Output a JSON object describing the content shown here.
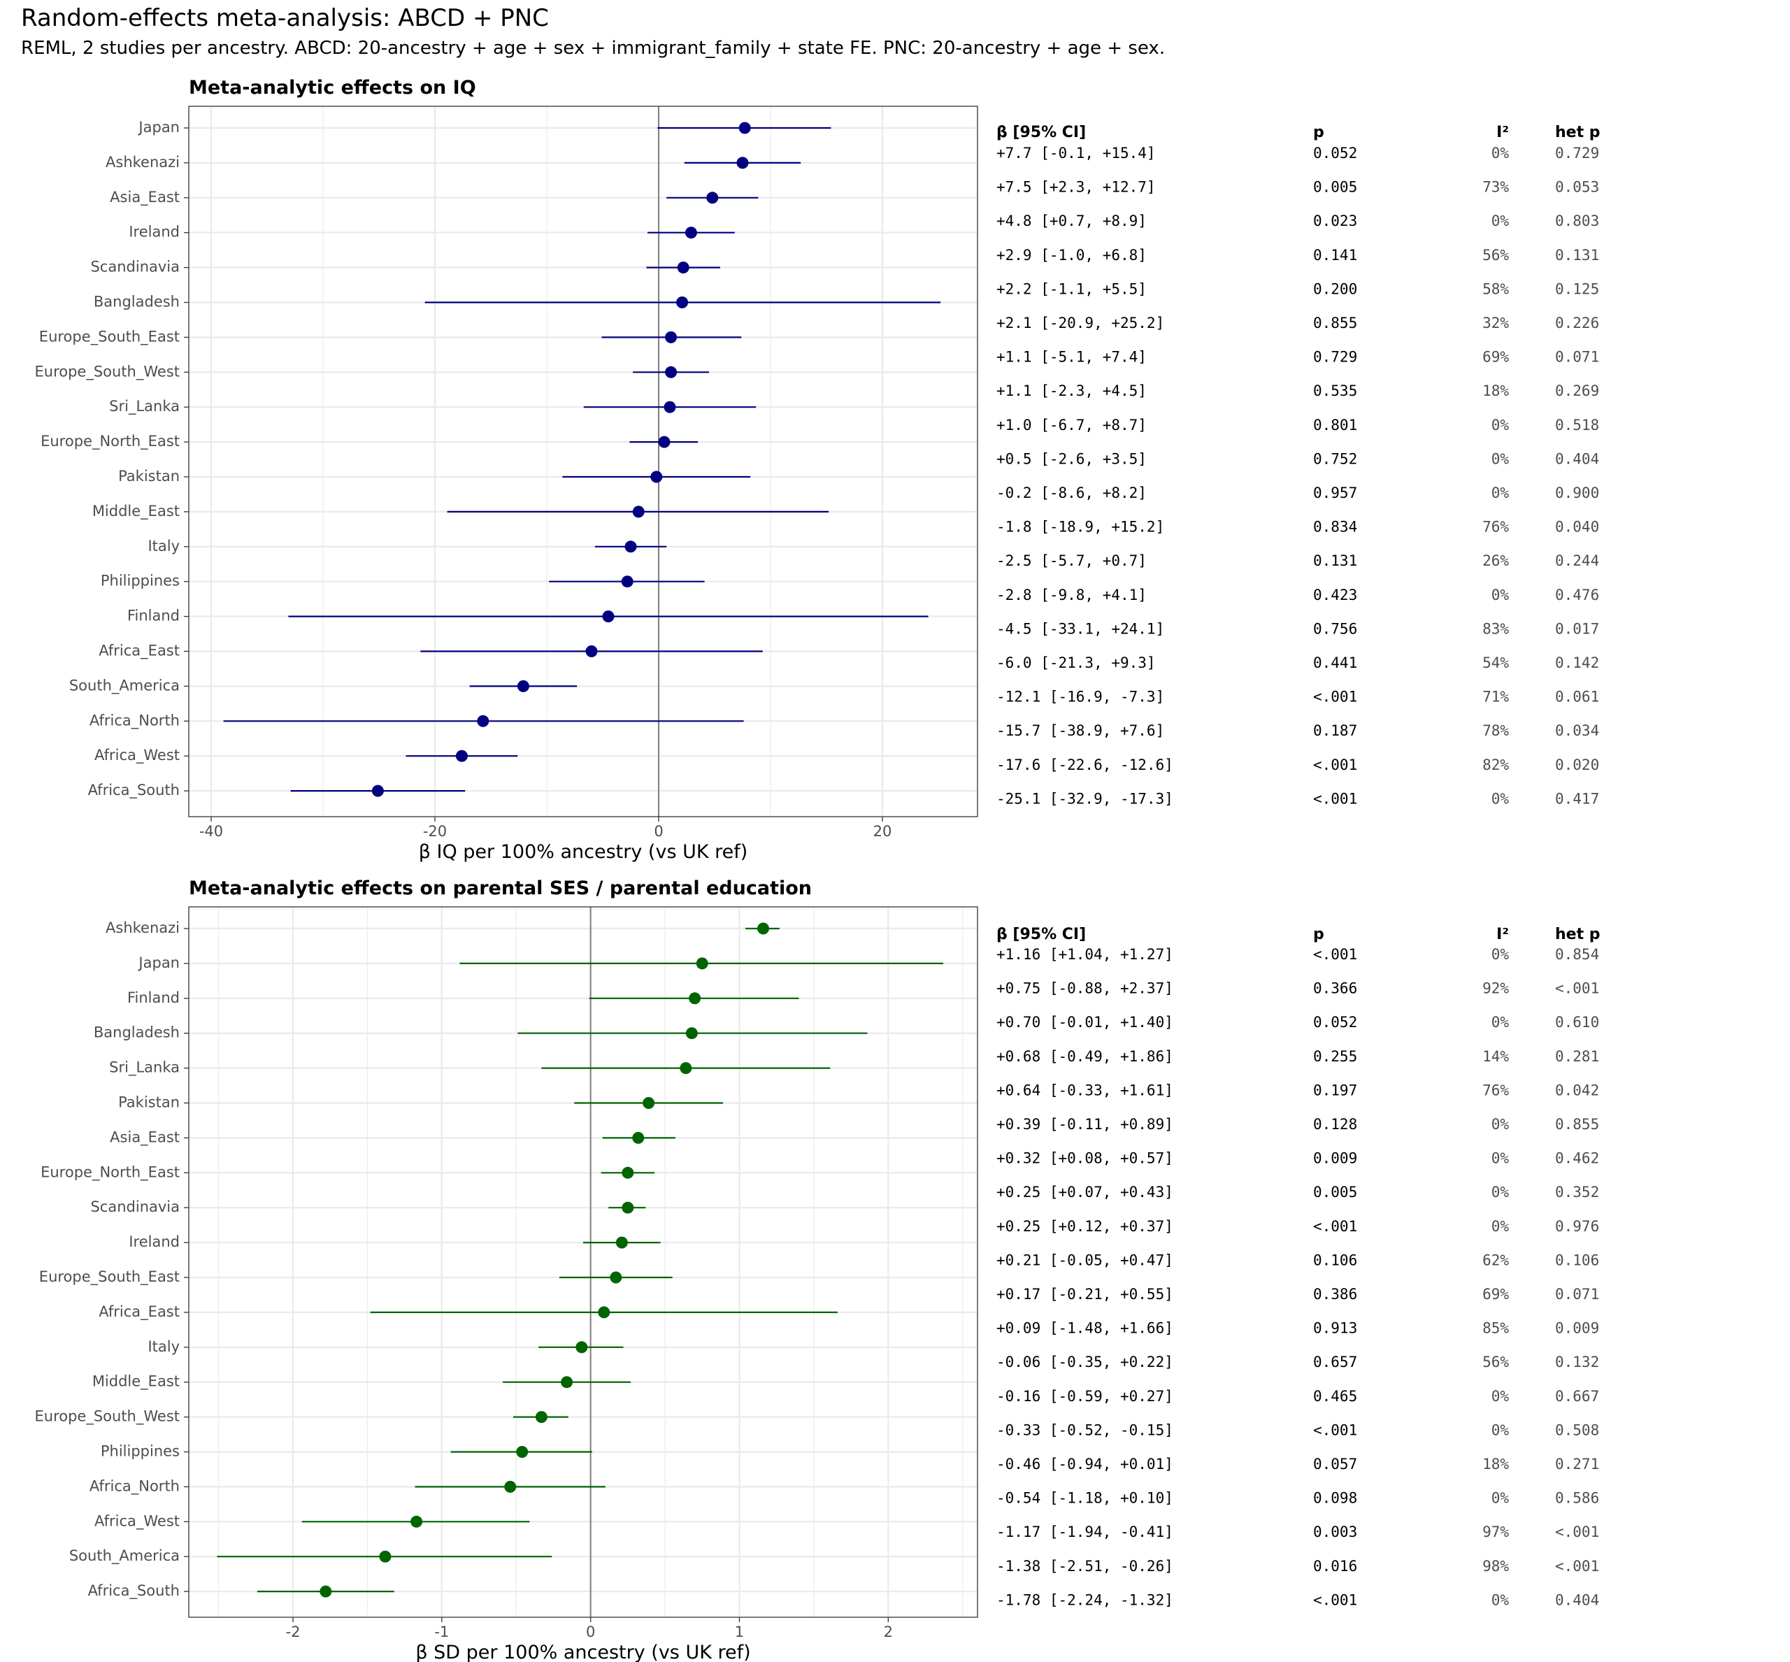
{
  "title": "Random-effects meta-analysis: ABCD + PNC",
  "subtitle": "REML, 2 studies per ancestry. ABCD: 20-ancestry + age + sex + immigrant_family + state FE.   PNC: 20-ancestry + age + sex.",
  "colors": {
    "panel1": "#000080",
    "panel2": "#006400",
    "zero_line": "#808080",
    "grid": "#ebebeb",
    "border": "#333333"
  },
  "chart_data": [
    {
      "type": "forest",
      "title": "Meta-analytic effects on IQ",
      "xlabel": "β IQ per 100% ancestry (vs UK ref)",
      "xlim": [
        -42.0,
        28.5
      ],
      "xticks": [
        -40,
        -20,
        0,
        20
      ],
      "xtick_labels": [
        "-40",
        "-20",
        "0",
        "20"
      ],
      "table_headers": {
        "beta": "β [95% CI]",
        "p": "p",
        "i2": "I²",
        "hetp": "het p"
      },
      "rows": [
        {
          "name": "Japan",
          "est": 7.7,
          "lo": -0.1,
          "hi": 15.4,
          "ci_text": "+7.7 [-0.1, +15.4]",
          "p": "0.052",
          "i2": "0%",
          "hetp": "0.729"
        },
        {
          "name": "Ashkenazi",
          "est": 7.5,
          "lo": 2.3,
          "hi": 12.7,
          "ci_text": "+7.5 [+2.3, +12.7]",
          "p": "0.005",
          "i2": "73%",
          "hetp": "0.053"
        },
        {
          "name": "Asia_East",
          "est": 4.8,
          "lo": 0.7,
          "hi": 8.9,
          "ci_text": "+4.8 [+0.7, +8.9]",
          "p": "0.023",
          "i2": "0%",
          "hetp": "0.803"
        },
        {
          "name": "Ireland",
          "est": 2.9,
          "lo": -1.0,
          "hi": 6.8,
          "ci_text": "+2.9 [-1.0, +6.8]",
          "p": "0.141",
          "i2": "56%",
          "hetp": "0.131"
        },
        {
          "name": "Scandinavia",
          "est": 2.2,
          "lo": -1.1,
          "hi": 5.5,
          "ci_text": "+2.2 [-1.1, +5.5]",
          "p": "0.200",
          "i2": "58%",
          "hetp": "0.125"
        },
        {
          "name": "Bangladesh",
          "est": 2.1,
          "lo": -20.9,
          "hi": 25.2,
          "ci_text": "+2.1 [-20.9, +25.2]",
          "p": "0.855",
          "i2": "32%",
          "hetp": "0.226"
        },
        {
          "name": "Europe_South_East",
          "est": 1.1,
          "lo": -5.1,
          "hi": 7.4,
          "ci_text": "+1.1 [-5.1, +7.4]",
          "p": "0.729",
          "i2": "69%",
          "hetp": "0.071"
        },
        {
          "name": "Europe_South_West",
          "est": 1.1,
          "lo": -2.3,
          "hi": 4.5,
          "ci_text": "+1.1 [-2.3, +4.5]",
          "p": "0.535",
          "i2": "18%",
          "hetp": "0.269"
        },
        {
          "name": "Sri_Lanka",
          "est": 1.0,
          "lo": -6.7,
          "hi": 8.7,
          "ci_text": "+1.0 [-6.7, +8.7]",
          "p": "0.801",
          "i2": "0%",
          "hetp": "0.518"
        },
        {
          "name": "Europe_North_East",
          "est": 0.5,
          "lo": -2.6,
          "hi": 3.5,
          "ci_text": "+0.5 [-2.6, +3.5]",
          "p": "0.752",
          "i2": "0%",
          "hetp": "0.404"
        },
        {
          "name": "Pakistan",
          "est": -0.2,
          "lo": -8.6,
          "hi": 8.2,
          "ci_text": "-0.2 [-8.6, +8.2]",
          "p": "0.957",
          "i2": "0%",
          "hetp": "0.900"
        },
        {
          "name": "Middle_East",
          "est": -1.8,
          "lo": -18.9,
          "hi": 15.2,
          "ci_text": "-1.8 [-18.9, +15.2]",
          "p": "0.834",
          "i2": "76%",
          "hetp": "0.040"
        },
        {
          "name": "Italy",
          "est": -2.5,
          "lo": -5.7,
          "hi": 0.7,
          "ci_text": "-2.5 [-5.7, +0.7]",
          "p": "0.131",
          "i2": "26%",
          "hetp": "0.244"
        },
        {
          "name": "Philippines",
          "est": -2.8,
          "lo": -9.8,
          "hi": 4.1,
          "ci_text": "-2.8 [-9.8, +4.1]",
          "p": "0.423",
          "i2": "0%",
          "hetp": "0.476"
        },
        {
          "name": "Finland",
          "est": -4.5,
          "lo": -33.1,
          "hi": 24.1,
          "ci_text": "-4.5 [-33.1, +24.1]",
          "p": "0.756",
          "i2": "83%",
          "hetp": "0.017"
        },
        {
          "name": "Africa_East",
          "est": -6.0,
          "lo": -21.3,
          "hi": 9.3,
          "ci_text": "-6.0 [-21.3, +9.3]",
          "p": "0.441",
          "i2": "54%",
          "hetp": "0.142"
        },
        {
          "name": "South_America",
          "est": -12.1,
          "lo": -16.9,
          "hi": -7.3,
          "ci_text": "-12.1 [-16.9, -7.3]",
          "p": "<.001",
          "i2": "71%",
          "hetp": "0.061"
        },
        {
          "name": "Africa_North",
          "est": -15.7,
          "lo": -38.9,
          "hi": 7.6,
          "ci_text": "-15.7 [-38.9, +7.6]",
          "p": "0.187",
          "i2": "78%",
          "hetp": "0.034"
        },
        {
          "name": "Africa_West",
          "est": -17.6,
          "lo": -22.6,
          "hi": -12.6,
          "ci_text": "-17.6 [-22.6, -12.6]",
          "p": "<.001",
          "i2": "82%",
          "hetp": "0.020"
        },
        {
          "name": "Africa_South",
          "est": -25.1,
          "lo": -32.9,
          "hi": -17.3,
          "ci_text": "-25.1 [-32.9, -17.3]",
          "p": "<.001",
          "i2": "0%",
          "hetp": "0.417"
        }
      ]
    },
    {
      "type": "forest",
      "title": "Meta-analytic effects on parental SES / parental education",
      "xlabel": "β SD per 100% ancestry (vs UK ref)",
      "xlim": [
        -2.7,
        2.6
      ],
      "xticks": [
        -2,
        -1,
        0,
        1,
        2
      ],
      "xtick_labels": [
        "-2",
        "-1",
        "0",
        "1",
        "2"
      ],
      "table_headers": {
        "beta": "β [95% CI]",
        "p": "p",
        "i2": "I²",
        "hetp": "het p"
      },
      "rows": [
        {
          "name": "Ashkenazi",
          "est": 1.16,
          "lo": 1.04,
          "hi": 1.27,
          "ci_text": "+1.16 [+1.04, +1.27]",
          "p": "<.001",
          "i2": "0%",
          "hetp": "0.854"
        },
        {
          "name": "Japan",
          "est": 0.75,
          "lo": -0.88,
          "hi": 2.37,
          "ci_text": "+0.75 [-0.88, +2.37]",
          "p": "0.366",
          "i2": "92%",
          "hetp": "<.001"
        },
        {
          "name": "Finland",
          "est": 0.7,
          "lo": -0.01,
          "hi": 1.4,
          "ci_text": "+0.70 [-0.01, +1.40]",
          "p": "0.052",
          "i2": "0%",
          "hetp": "0.610"
        },
        {
          "name": "Bangladesh",
          "est": 0.68,
          "lo": -0.49,
          "hi": 1.86,
          "ci_text": "+0.68 [-0.49, +1.86]",
          "p": "0.255",
          "i2": "14%",
          "hetp": "0.281"
        },
        {
          "name": "Sri_Lanka",
          "est": 0.64,
          "lo": -0.33,
          "hi": 1.61,
          "ci_text": "+0.64 [-0.33, +1.61]",
          "p": "0.197",
          "i2": "76%",
          "hetp": "0.042"
        },
        {
          "name": "Pakistan",
          "est": 0.39,
          "lo": -0.11,
          "hi": 0.89,
          "ci_text": "+0.39 [-0.11, +0.89]",
          "p": "0.128",
          "i2": "0%",
          "hetp": "0.855"
        },
        {
          "name": "Asia_East",
          "est": 0.32,
          "lo": 0.08,
          "hi": 0.57,
          "ci_text": "+0.32 [+0.08, +0.57]",
          "p": "0.009",
          "i2": "0%",
          "hetp": "0.462"
        },
        {
          "name": "Europe_North_East",
          "est": 0.25,
          "lo": 0.07,
          "hi": 0.43,
          "ci_text": "+0.25 [+0.07, +0.43]",
          "p": "0.005",
          "i2": "0%",
          "hetp": "0.352"
        },
        {
          "name": "Scandinavia",
          "est": 0.25,
          "lo": 0.12,
          "hi": 0.37,
          "ci_text": "+0.25 [+0.12, +0.37]",
          "p": "<.001",
          "i2": "0%",
          "hetp": "0.976"
        },
        {
          "name": "Ireland",
          "est": 0.21,
          "lo": -0.05,
          "hi": 0.47,
          "ci_text": "+0.21 [-0.05, +0.47]",
          "p": "0.106",
          "i2": "62%",
          "hetp": "0.106"
        },
        {
          "name": "Europe_South_East",
          "est": 0.17,
          "lo": -0.21,
          "hi": 0.55,
          "ci_text": "+0.17 [-0.21, +0.55]",
          "p": "0.386",
          "i2": "69%",
          "hetp": "0.071"
        },
        {
          "name": "Africa_East",
          "est": 0.09,
          "lo": -1.48,
          "hi": 1.66,
          "ci_text": "+0.09 [-1.48, +1.66]",
          "p": "0.913",
          "i2": "85%",
          "hetp": "0.009"
        },
        {
          "name": "Italy",
          "est": -0.06,
          "lo": -0.35,
          "hi": 0.22,
          "ci_text": "-0.06 [-0.35, +0.22]",
          "p": "0.657",
          "i2": "56%",
          "hetp": "0.132"
        },
        {
          "name": "Middle_East",
          "est": -0.16,
          "lo": -0.59,
          "hi": 0.27,
          "ci_text": "-0.16 [-0.59, +0.27]",
          "p": "0.465",
          "i2": "0%",
          "hetp": "0.667"
        },
        {
          "name": "Europe_South_West",
          "est": -0.33,
          "lo": -0.52,
          "hi": -0.15,
          "ci_text": "-0.33 [-0.52, -0.15]",
          "p": "<.001",
          "i2": "0%",
          "hetp": "0.508"
        },
        {
          "name": "Philippines",
          "est": -0.46,
          "lo": -0.94,
          "hi": 0.01,
          "ci_text": "-0.46 [-0.94, +0.01]",
          "p": "0.057",
          "i2": "18%",
          "hetp": "0.271"
        },
        {
          "name": "Africa_North",
          "est": -0.54,
          "lo": -1.18,
          "hi": 0.1,
          "ci_text": "-0.54 [-1.18, +0.10]",
          "p": "0.098",
          "i2": "0%",
          "hetp": "0.586"
        },
        {
          "name": "Africa_West",
          "est": -1.17,
          "lo": -1.94,
          "hi": -0.41,
          "ci_text": "-1.17 [-1.94, -0.41]",
          "p": "0.003",
          "i2": "97%",
          "hetp": "<.001"
        },
        {
          "name": "South_America",
          "est": -1.38,
          "lo": -2.51,
          "hi": -0.26,
          "ci_text": "-1.38 [-2.51, -0.26]",
          "p": "0.016",
          "i2": "98%",
          "hetp": "<.001"
        },
        {
          "name": "Africa_South",
          "est": -1.78,
          "lo": -2.24,
          "hi": -1.32,
          "ci_text": "-1.78 [-2.24, -1.32]",
          "p": "<.001",
          "i2": "0%",
          "hetp": "0.404"
        }
      ]
    }
  ]
}
